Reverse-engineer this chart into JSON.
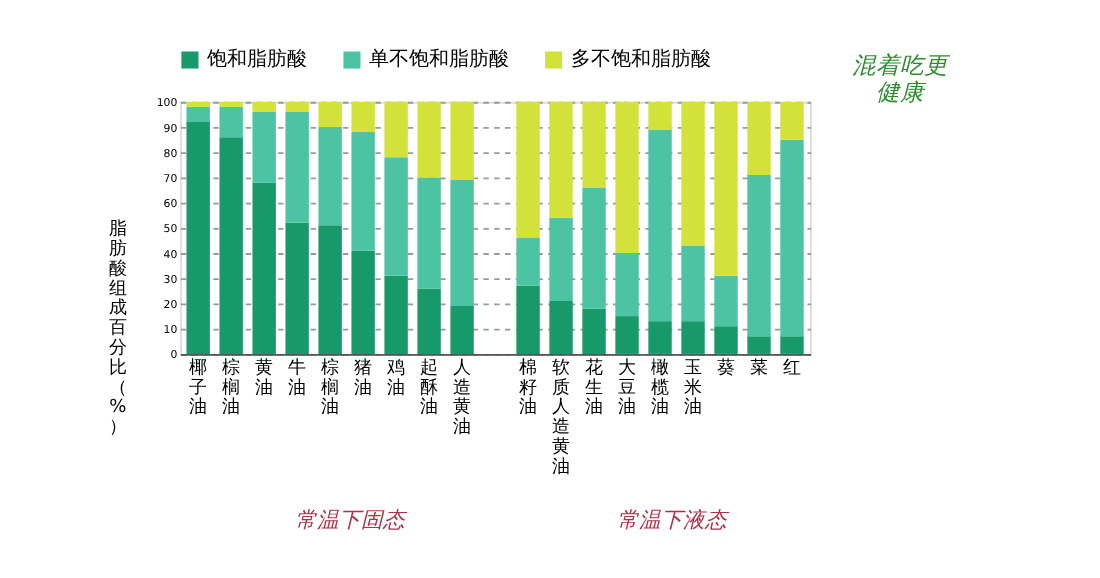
{
  "chart_data": {
    "type": "bar",
    "stacked": true,
    "ylabel": "脂肪酸组成百分比（%）",
    "categories": [
      "椰子油",
      "棕榈油",
      "黄油",
      "牛油",
      "棕榈油",
      "猪油",
      "鸡油",
      "起酥油",
      "人造黄油",
      null,
      "棉籽油",
      "软质人造黄油",
      "花生油",
      "大豆油",
      "橄榄油",
      "玉米油",
      "葵",
      "菜",
      "红"
    ],
    "series": [
      {
        "name": "饱和脂肪酸",
        "color": "#17996a",
        "values": [
          92,
          86,
          68,
          52,
          51,
          41,
          31,
          26,
          19,
          null,
          27,
          21,
          18,
          15,
          13,
          13,
          11,
          7,
          7
        ]
      },
      {
        "name": "单不饱和脂肪酸",
        "color": "#4cc3a2",
        "values": [
          6,
          12,
          28,
          44,
          39,
          47,
          47,
          44,
          50,
          null,
          19,
          33,
          48,
          25,
          76,
          30,
          20,
          64,
          78
        ]
      },
      {
        "name": "多不饱和脂肪酸",
        "color": "#d3e23b",
        "values": [
          2,
          2,
          4,
          4,
          10,
          12,
          22,
          30,
          31,
          null,
          54,
          46,
          34,
          60,
          11,
          57,
          69,
          29,
          15
        ]
      }
    ],
    "ylim": [
      0,
      100
    ],
    "yticks": [
      0,
      10,
      20,
      30,
      40,
      50,
      60,
      70,
      80,
      90,
      100
    ],
    "grid": "y",
    "legend": "top",
    "annotations": [
      "常温下固态",
      "常温下液态",
      "混着吃更健康"
    ]
  }
}
